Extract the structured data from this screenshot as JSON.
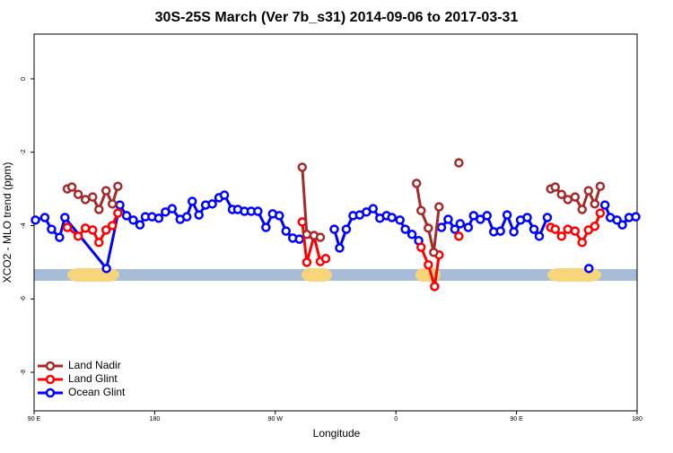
{
  "chart_data": {
    "type": "line",
    "title": "30S-25S March (Ver 7b_s31)   2014-09-06 to 2017-03-31",
    "x_label": "Longitude",
    "y_label": "XCO2 - MLO trend (ppm)",
    "xlim": [
      90,
      540
    ],
    "ylim": [
      -9.05,
      1.22
    ],
    "xticks": [
      {
        "value": 90,
        "label": "90 E"
      },
      180,
      {
        "value": 270,
        "label": "90 W"
      },
      {
        "value": 360,
        "label": "0"
      },
      {
        "value": 450,
        "label": "90 E"
      },
      {
        "value": 540,
        "label": "180"
      }
    ],
    "yticks": [
      0,
      -2,
      -4,
      -6,
      -8
    ],
    "legend": "bottom-left",
    "series": [
      {
        "name": "Land Nadir",
        "color": "#a52a2a",
        "x": [
          114.8,
          118.2,
          122.9,
          128.3,
          133.7,
          138.4,
          143.7,
          148.4,
          152.5,
          null,
          290.1,
          293.5,
          298.9,
          303.6,
          null,
          375.4,
          378.8,
          384.2,
          388.2,
          392.2,
          null,
          407,
          null,
          475.5,
          478.9,
          483.6,
          488.3,
          493.7,
          499.0,
          503.7,
          508.4,
          512.5
        ],
        "values": [
          -3.0,
          -2.95,
          -3.15,
          -3.29,
          -3.22,
          -3.56,
          -3.05,
          -3.41,
          -2.93,
          null,
          -2.41,
          -4.24,
          -4.27,
          -4.32,
          null,
          -2.85,
          -3.59,
          -4.07,
          -4.73,
          -3.49,
          null,
          -2.29,
          null,
          -3.0,
          -2.95,
          -3.15,
          -3.29,
          -3.22,
          -3.56,
          -3.05,
          -3.41,
          -2.93
        ]
      },
      {
        "name": "Land Glint",
        "color": "#ff0000",
        "x": [
          114.8,
          122.9,
          128.3,
          133.7,
          138.4,
          143.7,
          148.4,
          152.5,
          null,
          290.1,
          293.5,
          298.9,
          303.6,
          307.6,
          null,
          378.8,
          384.2,
          388.9,
          392.2,
          null,
          407,
          null,
          475.5,
          478.9,
          483.6,
          488.3,
          493.7,
          499.0,
          503.7,
          508.4,
          512.5
        ],
        "values": [
          -4.05,
          -4.29,
          -4.07,
          -4.12,
          -4.46,
          -4.12,
          -4.0,
          -3.66,
          null,
          -3.9,
          -5.0,
          -4.29,
          -4.98,
          -4.9,
          null,
          -4.59,
          -5.07,
          -5.66,
          -4.8,
          null,
          -4.29,
          null,
          -4.05,
          -4.1,
          -4.29,
          -4.1,
          -4.15,
          -4.46,
          -4.12,
          -4.02,
          -3.66
        ]
      },
      {
        "name": "Ocean Glint",
        "color": "#0000ff",
        "x": [
          91,
          98,
          103,
          109,
          113,
          144,
          154,
          159,
          164,
          169,
          173,
          178,
          183,
          188,
          193,
          199,
          204,
          208,
          213,
          218,
          223,
          228,
          232,
          238,
          242,
          247,
          252,
          257,
          263,
          268,
          273,
          278,
          283,
          288,
          null,
          314,
          318,
          323,
          328,
          333,
          338,
          343,
          348,
          353,
          357,
          363,
          367,
          372,
          377,
          null,
          394,
          399,
          404,
          408,
          414,
          418,
          423,
          428,
          433,
          438,
          443,
          448,
          453,
          458,
          463,
          467,
          473,
          null,
          504,
          null,
          516,
          520,
          525,
          529,
          534,
          539
        ],
        "values": [
          -3.85,
          -3.78,
          -4.1,
          -4.32,
          -3.78,
          -5.17,
          -3.44,
          -3.73,
          -3.85,
          -3.98,
          -3.76,
          -3.76,
          -3.8,
          -3.63,
          -3.54,
          -3.83,
          -3.76,
          -3.34,
          -3.71,
          -3.44,
          -3.41,
          -3.24,
          -3.17,
          -3.56,
          -3.56,
          -3.61,
          -3.61,
          -3.61,
          -4.05,
          -3.68,
          -3.73,
          -4.15,
          -4.34,
          -4.37,
          null,
          -4.1,
          -4.61,
          -4.1,
          -3.73,
          -3.71,
          -3.63,
          -3.54,
          -3.8,
          -3.73,
          -3.78,
          -3.85,
          -4.1,
          -4.24,
          -4.41,
          null,
          -4.05,
          -3.83,
          -4.1,
          -3.95,
          -4.05,
          -3.73,
          -3.83,
          -3.73,
          -4.17,
          -4.15,
          -3.71,
          -4.17,
          -3.85,
          -3.78,
          -4.1,
          -4.29,
          -3.78,
          null,
          -5.17,
          null,
          -3.44,
          -3.78,
          -3.85,
          -3.98,
          -3.78,
          -3.76
        ]
      }
    ]
  }
}
